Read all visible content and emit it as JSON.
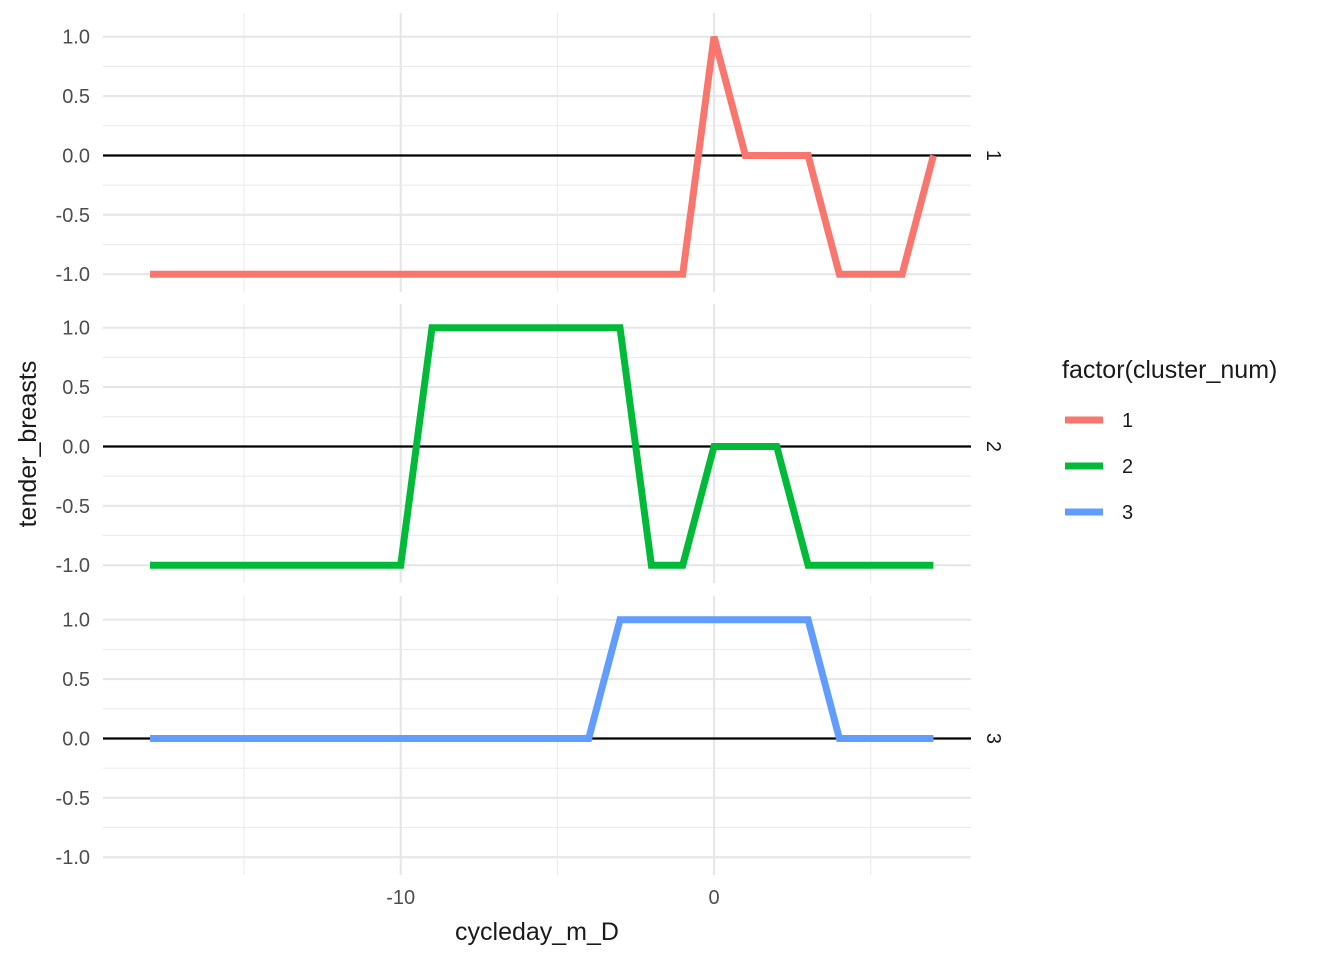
{
  "chart_data": {
    "type": "line",
    "xlabel": "cycleday_m_D",
    "ylabel": "tender_breasts",
    "xlim": [
      -19.5,
      8.2
    ],
    "ylim": [
      -1.15,
      1.2
    ],
    "x_ticks": [
      -10,
      0
    ],
    "x_tick_labels": [
      "-10",
      "0"
    ],
    "y_ticks": [
      -1.0,
      -0.5,
      0.0,
      0.5,
      1.0
    ],
    "y_tick_labels": [
      "-1.0",
      "-0.5",
      "0.0",
      "0.5",
      "1.0"
    ],
    "reference_line_y": 0,
    "grid": true,
    "legend": {
      "title": "factor(cluster_num)",
      "position": "right",
      "entries": [
        "1",
        "2",
        "3"
      ]
    },
    "facets": [
      {
        "label": "1",
        "color": "#F8766D",
        "x": [
          -18,
          -1,
          0,
          1,
          3,
          4,
          6,
          7
        ],
        "y": [
          -1,
          -1,
          1,
          0,
          0,
          -1,
          -1,
          0
        ]
      },
      {
        "label": "2",
        "color": "#00BA38",
        "x": [
          -18,
          -10,
          -9,
          -3,
          -2,
          -1,
          0,
          2,
          3,
          7
        ],
        "y": [
          -1,
          -1,
          1,
          1,
          -1,
          -1,
          0,
          0,
          -1,
          -1
        ]
      },
      {
        "label": "3",
        "color": "#619CFF",
        "x": [
          -18,
          -4,
          -3,
          3,
          4,
          7
        ],
        "y": [
          0,
          0,
          1,
          1,
          0,
          0
        ]
      }
    ]
  }
}
